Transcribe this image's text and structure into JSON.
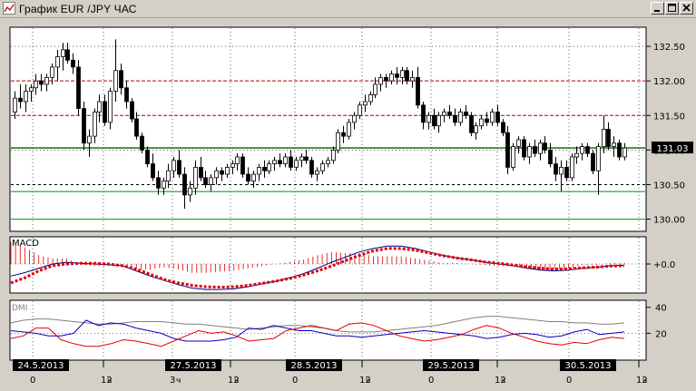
{
  "window": {
    "title": "График EUR /JPY ЧАС",
    "controls": [
      "minimize",
      "maximize",
      "close"
    ]
  },
  "chart_data": [
    {
      "type": "candlestick",
      "panel": "price",
      "instrument": "EUR/JPY",
      "timeframe": "1H",
      "ylim": [
        129.85,
        132.75
      ],
      "yticks": [
        "132.50",
        "132.00",
        "131.50",
        "131.00",
        "130.50",
        "130.00"
      ],
      "last_price_label": "131.03",
      "levels": [
        {
          "value": 132.0,
          "color": "#b00000"
        },
        {
          "value": 131.5,
          "color": "#b00000"
        },
        {
          "value": 131.03,
          "color": "#006000"
        },
        {
          "value": 130.5,
          "color": "#000000"
        },
        {
          "value": 130.4,
          "color": "#009000"
        },
        {
          "value": 130.0,
          "color": "#009000"
        }
      ],
      "ohlc": [
        [
          131.55,
          131.85,
          131.45,
          131.75
        ],
        [
          131.75,
          131.95,
          131.6,
          131.7
        ],
        [
          131.7,
          131.95,
          131.55,
          131.85
        ],
        [
          131.85,
          131.95,
          131.7,
          131.9
        ],
        [
          131.9,
          132.1,
          131.8,
          132.0
        ],
        [
          132.0,
          132.1,
          131.85,
          131.95
        ],
        [
          131.95,
          132.1,
          131.85,
          132.05
        ],
        [
          132.05,
          132.25,
          131.95,
          132.2
        ],
        [
          132.2,
          132.45,
          132.0,
          132.35
        ],
        [
          132.35,
          132.55,
          132.15,
          132.45
        ],
        [
          132.45,
          132.55,
          132.25,
          132.3
        ],
        [
          132.3,
          132.4,
          132.1,
          132.2
        ],
        [
          132.2,
          132.3,
          131.5,
          131.6
        ],
        [
          131.6,
          131.7,
          131.0,
          131.1
        ],
        [
          131.1,
          131.3,
          130.9,
          131.2
        ],
        [
          131.2,
          131.6,
          131.1,
          131.55
        ],
        [
          131.55,
          131.8,
          131.4,
          131.7
        ],
        [
          131.7,
          131.8,
          131.35,
          131.4
        ],
        [
          131.4,
          131.9,
          131.3,
          131.85
        ],
        [
          131.85,
          132.6,
          131.7,
          132.15
        ],
        [
          132.15,
          132.25,
          131.8,
          131.9
        ],
        [
          131.9,
          132.0,
          131.6,
          131.7
        ],
        [
          131.7,
          131.75,
          131.4,
          131.45
        ],
        [
          131.45,
          131.55,
          131.15,
          131.2
        ],
        [
          131.2,
          131.25,
          130.95,
          131.0
        ],
        [
          131.0,
          131.05,
          130.75,
          130.8
        ],
        [
          130.8,
          130.95,
          130.55,
          130.6
        ],
        [
          130.6,
          130.7,
          130.35,
          130.45
        ],
        [
          130.45,
          130.6,
          130.35,
          130.55
        ],
        [
          130.55,
          130.8,
          130.45,
          130.7
        ],
        [
          130.7,
          130.9,
          130.6,
          130.85
        ],
        [
          130.85,
          131.0,
          130.6,
          130.65
        ],
        [
          130.65,
          130.75,
          130.15,
          130.35
        ],
        [
          130.35,
          130.55,
          130.25,
          130.45
        ],
        [
          130.45,
          130.85,
          130.35,
          130.75
        ],
        [
          130.75,
          130.9,
          130.55,
          130.6
        ],
        [
          130.6,
          130.7,
          130.45,
          130.5
        ],
        [
          130.5,
          130.65,
          130.4,
          130.6
        ],
        [
          130.6,
          130.75,
          130.5,
          130.7
        ],
        [
          130.7,
          130.75,
          130.55,
          130.65
        ],
        [
          130.65,
          130.8,
          130.6,
          130.75
        ],
        [
          130.75,
          130.85,
          130.65,
          130.8
        ],
        [
          130.8,
          130.95,
          130.7,
          130.9
        ],
        [
          130.9,
          130.95,
          130.6,
          130.65
        ],
        [
          130.65,
          130.75,
          130.5,
          130.55
        ],
        [
          130.55,
          130.7,
          130.45,
          130.65
        ],
        [
          130.65,
          130.8,
          130.55,
          130.75
        ],
        [
          130.75,
          130.85,
          130.6,
          130.7
        ],
        [
          130.7,
          130.85,
          130.65,
          130.8
        ],
        [
          130.8,
          130.9,
          130.7,
          130.85
        ],
        [
          130.85,
          130.95,
          130.75,
          130.8
        ],
        [
          130.8,
          130.95,
          130.75,
          130.9
        ],
        [
          130.9,
          131.0,
          130.7,
          130.75
        ],
        [
          130.75,
          130.9,
          130.7,
          130.85
        ],
        [
          130.85,
          130.95,
          130.75,
          130.9
        ],
        [
          130.9,
          131.0,
          130.8,
          130.85
        ],
        [
          130.85,
          130.9,
          130.6,
          130.65
        ],
        [
          130.65,
          130.75,
          130.55,
          130.7
        ],
        [
          130.7,
          130.85,
          130.65,
          130.8
        ],
        [
          130.8,
          130.9,
          130.75,
          130.85
        ],
        [
          130.85,
          131.05,
          130.8,
          131.0
        ],
        [
          131.0,
          131.3,
          130.95,
          131.25
        ],
        [
          131.25,
          131.35,
          131.1,
          131.2
        ],
        [
          131.2,
          131.45,
          131.15,
          131.4
        ],
        [
          131.4,
          131.55,
          131.3,
          131.5
        ],
        [
          131.5,
          131.7,
          131.45,
          131.65
        ],
        [
          131.65,
          131.8,
          131.55,
          131.7
        ],
        [
          131.7,
          131.85,
          131.65,
          131.8
        ],
        [
          131.8,
          132.05,
          131.75,
          131.95
        ],
        [
          131.95,
          132.1,
          131.85,
          132.05
        ],
        [
          132.05,
          132.1,
          131.9,
          132.0
        ],
        [
          132.0,
          132.15,
          131.95,
          132.1
        ],
        [
          132.1,
          132.2,
          131.95,
          132.05
        ],
        [
          132.05,
          132.2,
          131.95,
          132.15
        ],
        [
          132.15,
          132.2,
          131.95,
          132.0
        ],
        [
          132.0,
          132.15,
          131.9,
          132.05
        ],
        [
          132.05,
          132.2,
          131.6,
          131.65
        ],
        [
          131.65,
          131.7,
          131.3,
          131.4
        ],
        [
          131.4,
          131.55,
          131.3,
          131.5
        ],
        [
          131.5,
          131.6,
          131.3,
          131.35
        ],
        [
          131.35,
          131.55,
          131.25,
          131.5
        ],
        [
          131.5,
          131.6,
          131.4,
          131.55
        ],
        [
          131.55,
          131.65,
          131.45,
          131.5
        ],
        [
          131.5,
          131.6,
          131.35,
          131.4
        ],
        [
          131.4,
          131.6,
          131.35,
          131.55
        ],
        [
          131.55,
          131.65,
          131.45,
          131.5
        ],
        [
          131.5,
          131.55,
          131.2,
          131.25
        ],
        [
          131.25,
          131.4,
          131.15,
          131.35
        ],
        [
          131.35,
          131.5,
          131.3,
          131.45
        ],
        [
          131.45,
          131.55,
          131.35,
          131.4
        ],
        [
          131.4,
          131.6,
          131.35,
          131.55
        ],
        [
          131.55,
          131.65,
          131.35,
          131.4
        ],
        [
          131.4,
          131.45,
          131.2,
          131.25
        ],
        [
          131.25,
          131.35,
          130.65,
          130.75
        ],
        [
          130.75,
          131.1,
          130.7,
          131.05
        ],
        [
          131.05,
          131.2,
          130.95,
          131.15
        ],
        [
          131.15,
          131.2,
          130.85,
          130.9
        ],
        [
          130.9,
          131.1,
          130.8,
          131.05
        ],
        [
          131.05,
          131.15,
          130.9,
          130.95
        ],
        [
          130.95,
          131.15,
          130.85,
          131.1
        ],
        [
          131.1,
          131.2,
          130.95,
          131.0
        ],
        [
          131.0,
          131.1,
          130.75,
          130.8
        ],
        [
          130.8,
          130.9,
          130.55,
          130.65
        ],
        [
          130.65,
          130.85,
          130.4,
          130.75
        ],
        [
          130.75,
          130.85,
          130.55,
          130.6
        ],
        [
          130.6,
          130.95,
          130.55,
          130.9
        ],
        [
          130.9,
          131.05,
          130.8,
          130.95
        ],
        [
          130.95,
          131.1,
          130.85,
          131.05
        ],
        [
          131.05,
          131.1,
          130.9,
          130.95
        ],
        [
          130.95,
          131.0,
          130.65,
          130.7
        ],
        [
          130.7,
          131.1,
          130.35,
          131.05
        ],
        [
          131.05,
          131.5,
          130.95,
          131.3
        ],
        [
          131.3,
          131.4,
          131.0,
          131.05
        ],
        [
          131.05,
          131.2,
          130.9,
          131.1
        ],
        [
          131.1,
          131.15,
          130.85,
          130.9
        ],
        [
          130.9,
          131.1,
          130.85,
          131.03
        ]
      ]
    },
    {
      "type": "line",
      "panel": "MACD",
      "label": "MACD",
      "zero_label": "+0.0",
      "series": [
        {
          "name": "macd",
          "color": "#00008b",
          "values": [
            -0.35,
            -0.25,
            -0.12,
            0.0,
            0.05,
            0.02,
            0.0,
            -0.02,
            -0.05,
            -0.2,
            -0.35,
            -0.48,
            -0.6,
            -0.7,
            -0.74,
            -0.74,
            -0.72,
            -0.66,
            -0.58,
            -0.5,
            -0.4,
            -0.28,
            -0.12,
            0.05,
            0.2,
            0.35,
            0.45,
            0.52,
            0.52,
            0.45,
            0.35,
            0.25,
            0.18,
            0.12,
            0.05,
            0.0,
            -0.05,
            -0.12,
            -0.18,
            -0.2,
            -0.18,
            -0.12,
            -0.1,
            -0.05,
            -0.04
          ]
        },
        {
          "name": "signal",
          "color": "#e00000",
          "values": [
            -0.55,
            -0.4,
            -0.2,
            -0.05,
            0.0,
            0.02,
            0.02,
            0.0,
            -0.05,
            -0.15,
            -0.3,
            -0.45,
            -0.55,
            -0.62,
            -0.66,
            -0.67,
            -0.66,
            -0.62,
            -0.56,
            -0.5,
            -0.42,
            -0.32,
            -0.2,
            -0.06,
            0.1,
            0.25,
            0.38,
            0.45,
            0.45,
            0.4,
            0.32,
            0.24,
            0.17,
            0.12,
            0.06,
            0.02,
            -0.03,
            -0.08,
            -0.12,
            -0.15,
            -0.14,
            -0.11,
            -0.09,
            -0.06,
            -0.05
          ]
        },
        {
          "name": "histogram",
          "color": "#e00000",
          "values": [
            0.2,
            0.15,
            0.08,
            0.05,
            0.05,
            0.0,
            -0.02,
            -0.02,
            0.0,
            -0.05,
            -0.05,
            -0.03,
            -0.05,
            -0.08,
            -0.08,
            -0.07,
            -0.06,
            -0.04,
            -0.02,
            0.0,
            0.02,
            0.04,
            0.08,
            0.11,
            0.1,
            0.1,
            0.07,
            0.07,
            0.07,
            0.05,
            0.03,
            0.01,
            0.01,
            0.0,
            -0.01,
            -0.02,
            -0.02,
            -0.04,
            -0.06,
            -0.05,
            -0.04,
            -0.01,
            -0.01,
            0.01,
            0.01
          ]
        }
      ]
    },
    {
      "type": "line",
      "panel": "DMI",
      "label": "DMI",
      "yticks": [
        "40",
        "20"
      ],
      "ylim": [
        0,
        44
      ],
      "series": [
        {
          "name": "adx",
          "color": "#808080",
          "values": [
            28,
            30,
            31,
            31,
            30,
            29,
            28,
            27,
            27,
            28,
            29,
            29,
            29,
            28,
            27,
            27,
            26,
            25,
            24,
            23,
            24,
            25,
            26,
            26,
            25,
            24,
            22,
            21,
            21,
            21,
            22,
            23,
            24,
            25,
            26,
            28,
            30,
            32,
            33,
            33,
            32,
            31,
            30,
            29,
            29,
            28,
            28,
            27,
            27,
            28
          ]
        },
        {
          "name": "di_plus",
          "color": "#0000c0",
          "values": [
            22,
            21,
            20,
            18,
            18,
            20,
            30,
            26,
            28,
            27,
            24,
            22,
            20,
            16,
            14,
            14,
            14,
            15,
            17,
            24,
            23,
            26,
            24,
            22,
            22,
            20,
            18,
            18,
            17,
            18,
            19,
            20,
            21,
            22,
            21,
            20,
            19,
            18,
            16,
            17,
            19,
            20,
            19,
            17,
            18,
            21,
            23,
            19,
            20,
            21
          ]
        },
        {
          "name": "di_minus",
          "color": "#e00000",
          "values": [
            16,
            18,
            24,
            24,
            15,
            12,
            10,
            10,
            12,
            15,
            14,
            12,
            10,
            14,
            18,
            22,
            20,
            21,
            18,
            14,
            15,
            16,
            22,
            24,
            26,
            24,
            22,
            27,
            28,
            26,
            22,
            18,
            16,
            14,
            15,
            17,
            19,
            23,
            26,
            24,
            20,
            17,
            14,
            12,
            11,
            13,
            12,
            15,
            17,
            16
          ]
        }
      ]
    }
  ],
  "time_axis": {
    "date_labels": [
      "24.5.2013",
      "27.5.2013",
      "28.5.2013",
      "29.5.2013",
      "30.5.2013"
    ],
    "hour_labels": [
      "0",
      "12",
      "3",
      "12",
      "0",
      "12",
      "0",
      "12",
      "0",
      "12"
    ]
  }
}
